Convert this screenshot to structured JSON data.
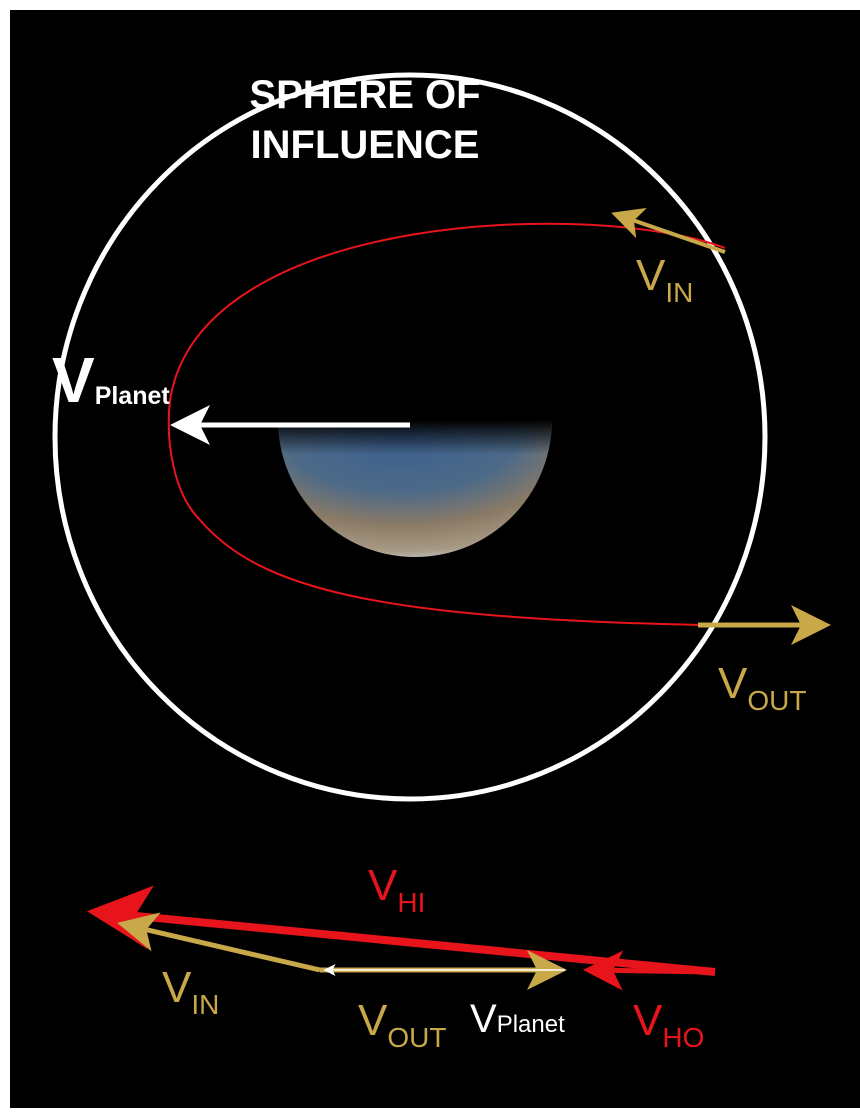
{
  "title": [
    "SPHERE OF",
    "INFLUENCE"
  ],
  "labels": {
    "v_planet_top": {
      "main": "V",
      "sub": "Planet"
    },
    "v_in_top": {
      "main": "V",
      "sub": "IN"
    },
    "v_out_top": {
      "main": "V",
      "sub": "OUT"
    },
    "v_hi": {
      "main": "V",
      "sub": "HI"
    },
    "v_in_bottom": {
      "main": "V",
      "sub": "IN"
    },
    "v_out_bottom": {
      "main": "V",
      "sub": "OUT"
    },
    "v_planet_bottom": {
      "main": "V",
      "sub": "Planet"
    },
    "v_ho": {
      "main": "V",
      "sub": "HO"
    }
  }
}
